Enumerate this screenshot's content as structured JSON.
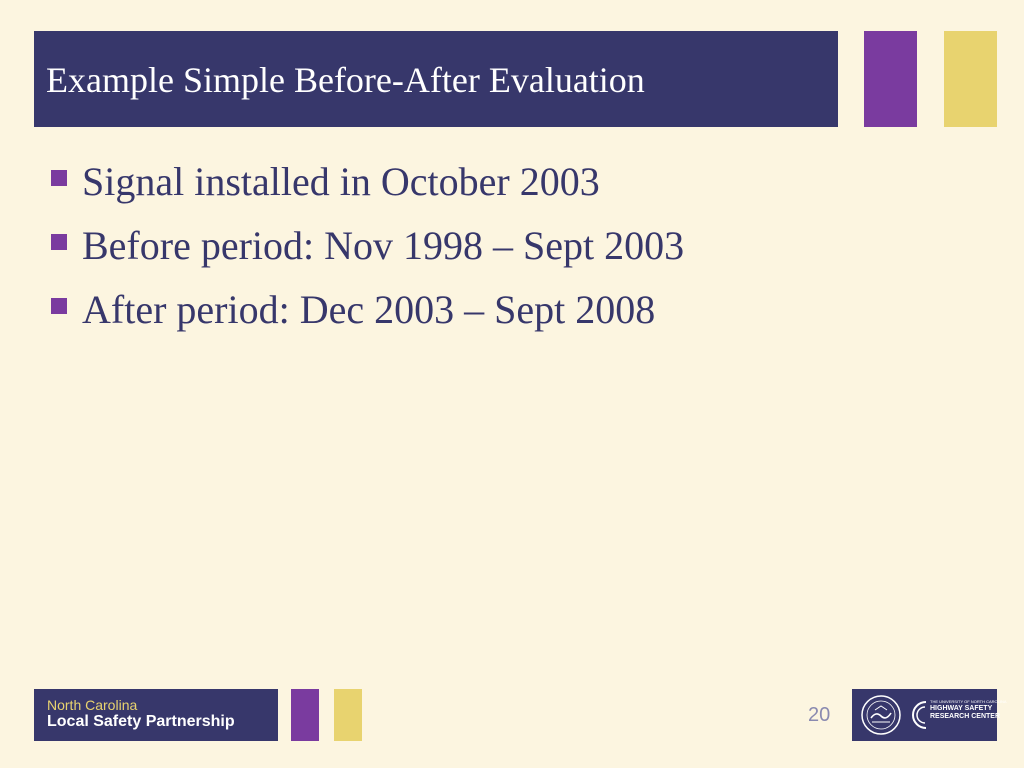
{
  "slide": {
    "title": "Example Simple Before-After Evaluation",
    "bullets": [
      "Signal installed in October 2003",
      "Before period: Nov 1998 – Sept 2003",
      "After period: Dec 2003 – Sept 2008"
    ],
    "page_number": "20"
  },
  "footer": {
    "line1": "North Carolina",
    "line2": "Local Safety Partnership"
  },
  "logos": {
    "seal": "ncdot-seal-icon",
    "hsrc_small": "THE UNIVERSITY OF NORTH CAROLINA",
    "hsrc_line1": "HIGHWAY SAFETY",
    "hsrc_line2": "RESEARCH CENTER"
  },
  "colors": {
    "background": "#fcf5e0",
    "navy": "#37376b",
    "purple": "#7a3b9f",
    "gold": "#e8d36f",
    "page_number": "#8a8ab0"
  }
}
